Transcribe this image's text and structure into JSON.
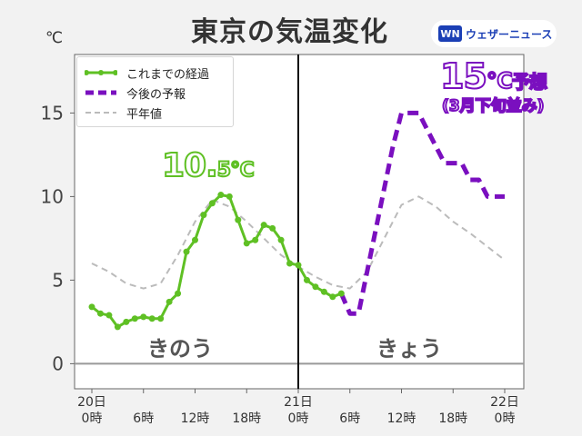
{
  "header": {
    "title": "東京の気温変化",
    "unit": "℃",
    "brand_mark": "WN",
    "brand_name": "ウェザーニュース"
  },
  "legend": {
    "observed": "これまでの経過",
    "forecast": "今後の予報",
    "normal": "平年値"
  },
  "annotations": {
    "yesterday_max_big": "10.",
    "yesterday_max_small": "5℃",
    "forecast_value": "15",
    "forecast_unit": "℃",
    "forecast_word": "予想",
    "forecast_note": "(3月下旬並み)",
    "label_yesterday": "きのう",
    "label_today": "きょう"
  },
  "colors": {
    "observed": "#5fc024",
    "forecast": "#7a0fbf",
    "normal": "#bbbbbb",
    "divider": "#111111",
    "zero_line": "#999999"
  },
  "chart_data": {
    "type": "line",
    "title": "東京の気温変化",
    "ylabel": "℃",
    "ylim": [
      -1.5,
      18.5
    ],
    "xlim": [
      0,
      48
    ],
    "yticks": [
      0,
      5,
      10,
      15
    ],
    "xticks": [
      {
        "x": 0,
        "line1": "20日",
        "line2": "0時"
      },
      {
        "x": 6,
        "line1": "",
        "line2": "6時"
      },
      {
        "x": 12,
        "line1": "",
        "line2": "12時"
      },
      {
        "x": 18,
        "line1": "",
        "line2": "18時"
      },
      {
        "x": 24,
        "line1": "21日",
        "line2": "0時"
      },
      {
        "x": 30,
        "line1": "",
        "line2": "6時"
      },
      {
        "x": 36,
        "line1": "",
        "line2": "12時"
      },
      {
        "x": 42,
        "line1": "",
        "line2": "18時"
      },
      {
        "x": 48,
        "line1": "22日",
        "line2": "0時"
      }
    ],
    "divider_x": 24,
    "series": [
      {
        "name": "これまでの経過",
        "style": "solid",
        "x": [
          0,
          1,
          2,
          3,
          4,
          5,
          6,
          7,
          8,
          9,
          10,
          11,
          12,
          13,
          14,
          15,
          16,
          17,
          18,
          19,
          20,
          21,
          22,
          23,
          24,
          25,
          26,
          27,
          28,
          29
        ],
        "y": [
          3.4,
          3.0,
          2.9,
          2.2,
          2.5,
          2.7,
          2.8,
          2.7,
          2.7,
          3.7,
          4.2,
          6.7,
          7.4,
          8.9,
          9.6,
          10.1,
          10.0,
          8.6,
          7.2,
          7.4,
          8.3,
          8.1,
          7.4,
          6.0,
          5.9,
          5.0,
          4.6,
          4.3,
          4.0,
          4.2
        ]
      },
      {
        "name": "今後の予報",
        "style": "dashed",
        "x": [
          29,
          30,
          31,
          32,
          33,
          34,
          35,
          36,
          37,
          38,
          39,
          40,
          41,
          42,
          43,
          44,
          45,
          46,
          47,
          48
        ],
        "y": [
          4.2,
          3.0,
          3.0,
          5.5,
          8.0,
          10.5,
          13.0,
          15.0,
          15.0,
          15.0,
          14.0,
          13.0,
          12.0,
          12.0,
          12.0,
          11.0,
          11.0,
          10.0,
          10.0,
          10.0
        ]
      },
      {
        "name": "平年値",
        "style": "dashed",
        "x": [
          0,
          2,
          4,
          6,
          8,
          10,
          12,
          14,
          16,
          18,
          20,
          22,
          24,
          26,
          28,
          30,
          32,
          34,
          36,
          38,
          40,
          42,
          44,
          46,
          48
        ],
        "y": [
          6.0,
          5.5,
          4.8,
          4.5,
          4.8,
          6.5,
          8.5,
          9.8,
          9.4,
          8.5,
          7.5,
          6.5,
          5.8,
          5.2,
          4.7,
          4.5,
          5.5,
          7.5,
          9.5,
          10.0,
          9.4,
          8.5,
          7.8,
          7.0,
          6.2
        ]
      }
    ]
  }
}
